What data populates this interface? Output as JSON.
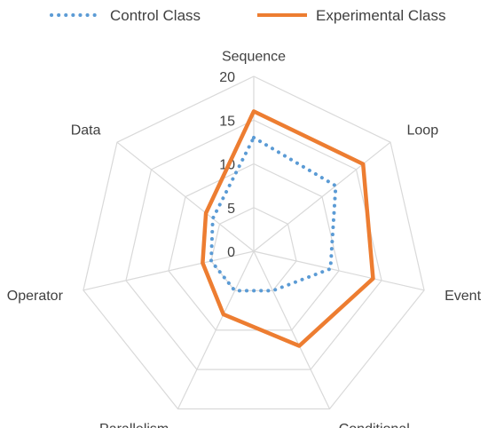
{
  "chart_data": {
    "type": "radar",
    "categories": [
      "Sequence",
      "Loop",
      "Event",
      "Conditional",
      "Parallelism",
      "Operator",
      "Data"
    ],
    "series": [
      {
        "name": "Control Class",
        "values": [
          13,
          12,
          9,
          5,
          5,
          5,
          6
        ],
        "color": "#5B9BD5",
        "style": "dotted"
      },
      {
        "name": "Experimental Class",
        "values": [
          16,
          16,
          14,
          12,
          8,
          6,
          7
        ],
        "color": "#ED7D31",
        "style": "solid"
      }
    ],
    "ticks": [
      "0",
      "5",
      "10",
      "15",
      "20"
    ],
    "rlim": [
      0,
      20
    ],
    "grid": true,
    "legend_position": "top"
  }
}
